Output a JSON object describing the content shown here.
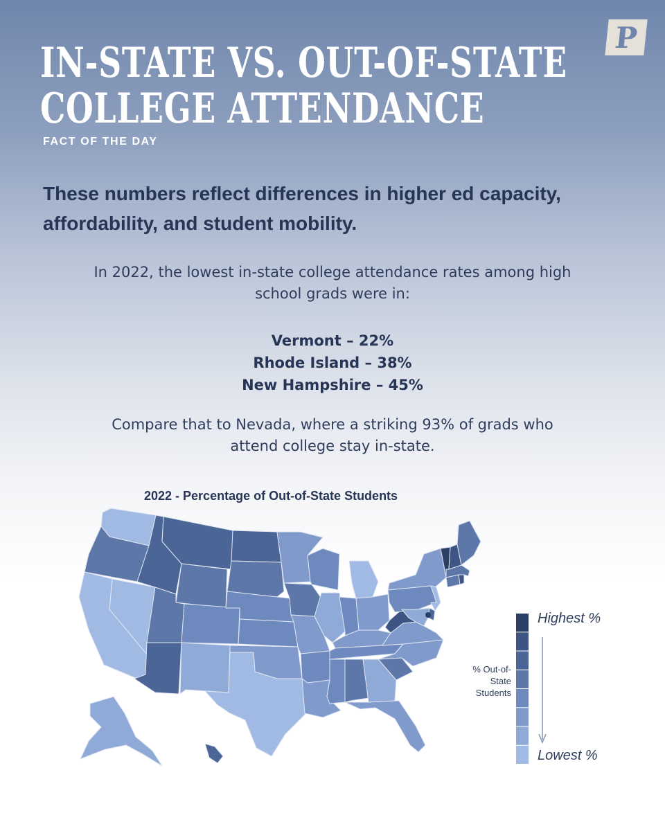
{
  "header": {
    "title_line1": "IN-STATE VS. OUT-OF-STATE",
    "title_line2": "COLLEGE ATTENDANCE",
    "subtitle": "FACT OF THE DAY",
    "logo_letter": "P"
  },
  "lead": "These numbers reflect differences in higher ed capacity, affordability, and student mobility.",
  "paragraph1": {
    "line1": "In 2022, the lowest in-state college attendance rates among high",
    "line2": "school grads were in:"
  },
  "stats": [
    "Vermont – 22%",
    "Rhode Island – 38%",
    "New Hampshire – 45%"
  ],
  "paragraph2": {
    "line1": "Compare that to Nevada, where a striking 93% of grads who",
    "line2": "attend college stay in-state."
  },
  "map": {
    "title": "2022 - Percentage of Out-of-State Students",
    "scale_colors": [
      "#2c3f66",
      "#3e5584",
      "#4c6597",
      "#5d77a8",
      "#6e89bd",
      "#7f9acb",
      "#90aad8",
      "#a1bae4"
    ],
    "states": [
      {
        "id": "WA",
        "level": 7
      },
      {
        "id": "OR",
        "level": 3
      },
      {
        "id": "CA",
        "level": 7
      },
      {
        "id": "NV",
        "level": 7
      },
      {
        "id": "ID",
        "level": 2
      },
      {
        "id": "MT",
        "level": 2
      },
      {
        "id": "WY",
        "level": 3
      },
      {
        "id": "UT",
        "level": 3
      },
      {
        "id": "AZ",
        "level": 2
      },
      {
        "id": "CO",
        "level": 4
      },
      {
        "id": "NM",
        "level": 6
      },
      {
        "id": "ND",
        "level": 2
      },
      {
        "id": "SD",
        "level": 3
      },
      {
        "id": "NE",
        "level": 4
      },
      {
        "id": "KS",
        "level": 4
      },
      {
        "id": "OK",
        "level": 5
      },
      {
        "id": "TX",
        "level": 7
      },
      {
        "id": "MN",
        "level": 5
      },
      {
        "id": "IA",
        "level": 3
      },
      {
        "id": "MO",
        "level": 5
      },
      {
        "id": "AR",
        "level": 4
      },
      {
        "id": "LA",
        "level": 5
      },
      {
        "id": "WI",
        "level": 4
      },
      {
        "id": "IL",
        "level": 6
      },
      {
        "id": "MI",
        "level": 7
      },
      {
        "id": "IN",
        "level": 4
      },
      {
        "id": "OH",
        "level": 5
      },
      {
        "id": "KY",
        "level": 5
      },
      {
        "id": "TN",
        "level": 4
      },
      {
        "id": "MS",
        "level": 4
      },
      {
        "id": "AL",
        "level": 3
      },
      {
        "id": "GA",
        "level": 6
      },
      {
        "id": "FL",
        "level": 5
      },
      {
        "id": "SC",
        "level": 3
      },
      {
        "id": "NC",
        "level": 5
      },
      {
        "id": "VA",
        "level": 5
      },
      {
        "id": "WV",
        "level": 1
      },
      {
        "id": "PA",
        "level": 4
      },
      {
        "id": "NY",
        "level": 5
      },
      {
        "id": "NJ",
        "level": 7
      },
      {
        "id": "DE",
        "level": 2
      },
      {
        "id": "MD",
        "level": 6
      },
      {
        "id": "CT",
        "level": 3
      },
      {
        "id": "RI",
        "level": 1
      },
      {
        "id": "MA",
        "level": 3
      },
      {
        "id": "VT",
        "level": 0
      },
      {
        "id": "NH",
        "level": 1
      },
      {
        "id": "ME",
        "level": 3
      },
      {
        "id": "AK",
        "level": 6
      },
      {
        "id": "HI",
        "level": 2
      },
      {
        "id": "DC",
        "level": 0
      }
    ]
  },
  "legend": {
    "highest": "Highest %",
    "lowest": "Lowest %",
    "axis_line1": "% Out-of-",
    "axis_line2": "State",
    "axis_line3": "Students"
  }
}
